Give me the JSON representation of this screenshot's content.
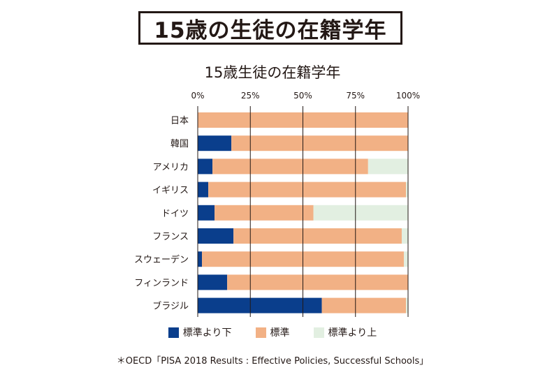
{
  "title_box": "15歳の生徒の在籍学年",
  "footnote": "＊OECD「PISA 2018 Results : Effective Policies, Successful Schools」",
  "colors": {
    "below": "#0a3e8c",
    "standard": "#f2b185",
    "above": "#e2efe1",
    "grid": "#231815"
  },
  "legend": [
    {
      "label": "標準より下",
      "color": "#0a3e8c"
    },
    {
      "label": "標準",
      "color": "#f2b185"
    },
    {
      "label": "標準より上",
      "color": "#e2efe1"
    }
  ],
  "chart_data": {
    "type": "bar",
    "orientation": "horizontal",
    "stacked": true,
    "title": "15歳生徒の在籍学年",
    "xlim": [
      0,
      100
    ],
    "x_ticks": [
      "0%",
      "25%",
      "50%",
      "75%",
      "100%"
    ],
    "x_tick_values": [
      0,
      25,
      50,
      75,
      100
    ],
    "categories": [
      "日本",
      "韓国",
      "アメリカ",
      "イギリス",
      "ドイツ",
      "フランス",
      "スウェーデン",
      "フィンランド",
      "ブラジル"
    ],
    "series": [
      {
        "name": "標準より下",
        "values": [
          0,
          16,
          7,
          5,
          8,
          17,
          2,
          14,
          59
        ]
      },
      {
        "name": "標準",
        "values": [
          100,
          84,
          74,
          94,
          47,
          80,
          96,
          86,
          40
        ]
      },
      {
        "name": "標準より上",
        "values": [
          0,
          0,
          19,
          1,
          45,
          3,
          2,
          0,
          1
        ]
      }
    ],
    "grid": true,
    "legend_position": "bottom"
  }
}
